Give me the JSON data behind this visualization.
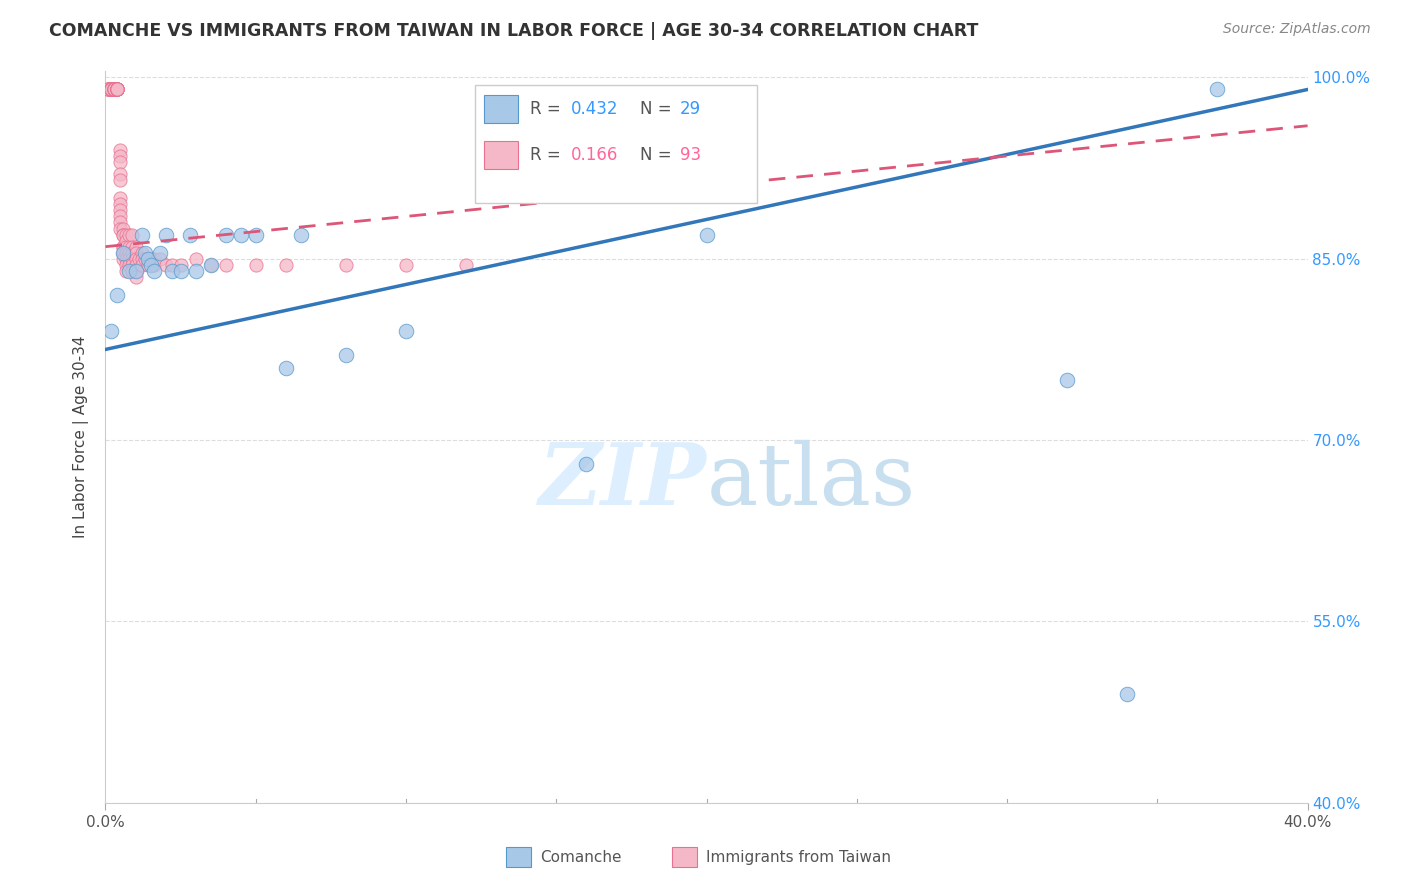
{
  "title": "COMANCHE VS IMMIGRANTS FROM TAIWAN IN LABOR FORCE | AGE 30-34 CORRELATION CHART",
  "source": "Source: ZipAtlas.com",
  "ylabel": "In Labor Force | Age 30-34",
  "xmin": 0.0,
  "xmax": 0.4,
  "ymin": 0.4,
  "ymax": 1.005,
  "yticks": [
    0.4,
    0.55,
    0.7,
    0.85,
    1.0
  ],
  "ytick_labels": [
    "40.0%",
    "55.0%",
    "70.0%",
    "85.0%",
    "100.0%"
  ],
  "legend_blue_r": "0.432",
  "legend_blue_n": "29",
  "legend_pink_r": "0.166",
  "legend_pink_n": "93",
  "blue_color": "#a8c8e8",
  "pink_color": "#f4b8c8",
  "blue_edge_color": "#5599cc",
  "pink_edge_color": "#e87090",
  "blue_line_color": "#3377bb",
  "pink_line_color": "#dd5577",
  "r_value_blue_color": "#3399ff",
  "r_value_pink_color": "#ff6699",
  "watermark_color": "#ddeeff",
  "background_color": "#ffffff",
  "grid_color": "#dddddd",
  "blue_scatter_x": [
    0.002,
    0.004,
    0.006,
    0.008,
    0.01,
    0.012,
    0.013,
    0.014,
    0.015,
    0.016,
    0.018,
    0.02,
    0.022,
    0.025,
    0.028,
    0.03,
    0.035,
    0.04,
    0.045,
    0.05,
    0.06,
    0.065,
    0.08,
    0.1,
    0.16,
    0.2,
    0.32,
    0.34,
    0.37
  ],
  "blue_scatter_y": [
    0.79,
    0.82,
    0.855,
    0.84,
    0.84,
    0.87,
    0.855,
    0.85,
    0.845,
    0.84,
    0.855,
    0.87,
    0.84,
    0.84,
    0.87,
    0.84,
    0.845,
    0.87,
    0.87,
    0.87,
    0.76,
    0.87,
    0.77,
    0.79,
    0.68,
    0.87,
    0.75,
    0.49,
    0.99
  ],
  "pink_scatter_x": [
    0.001,
    0.001,
    0.001,
    0.001,
    0.002,
    0.002,
    0.002,
    0.002,
    0.002,
    0.002,
    0.002,
    0.002,
    0.003,
    0.003,
    0.003,
    0.003,
    0.003,
    0.003,
    0.003,
    0.004,
    0.004,
    0.004,
    0.004,
    0.004,
    0.004,
    0.004,
    0.004,
    0.004,
    0.005,
    0.005,
    0.005,
    0.005,
    0.005,
    0.005,
    0.005,
    0.005,
    0.005,
    0.005,
    0.005,
    0.006,
    0.006,
    0.006,
    0.006,
    0.006,
    0.006,
    0.006,
    0.006,
    0.007,
    0.007,
    0.007,
    0.007,
    0.007,
    0.007,
    0.007,
    0.008,
    0.008,
    0.008,
    0.008,
    0.008,
    0.009,
    0.009,
    0.009,
    0.009,
    0.009,
    0.009,
    0.009,
    0.01,
    0.01,
    0.01,
    0.01,
    0.01,
    0.01,
    0.011,
    0.012,
    0.012,
    0.012,
    0.013,
    0.014,
    0.015,
    0.016,
    0.016,
    0.018,
    0.02,
    0.022,
    0.025,
    0.03,
    0.035,
    0.04,
    0.05,
    0.06,
    0.08,
    0.1,
    0.12
  ],
  "pink_scatter_y": [
    0.99,
    0.99,
    0.99,
    0.99,
    0.99,
    0.99,
    0.99,
    0.99,
    0.99,
    0.99,
    0.99,
    0.99,
    0.99,
    0.99,
    0.99,
    0.99,
    0.99,
    0.99,
    0.99,
    0.99,
    0.99,
    0.99,
    0.99,
    0.99,
    0.99,
    0.99,
    0.99,
    0.99,
    0.94,
    0.935,
    0.93,
    0.92,
    0.915,
    0.9,
    0.895,
    0.89,
    0.885,
    0.88,
    0.875,
    0.875,
    0.87,
    0.87,
    0.86,
    0.86,
    0.855,
    0.855,
    0.85,
    0.87,
    0.865,
    0.86,
    0.855,
    0.85,
    0.845,
    0.84,
    0.87,
    0.86,
    0.855,
    0.85,
    0.845,
    0.87,
    0.86,
    0.855,
    0.85,
    0.845,
    0.84,
    0.84,
    0.86,
    0.855,
    0.85,
    0.845,
    0.84,
    0.835,
    0.85,
    0.855,
    0.85,
    0.845,
    0.85,
    0.845,
    0.85,
    0.85,
    0.845,
    0.85,
    0.845,
    0.845,
    0.845,
    0.85,
    0.845,
    0.845,
    0.845,
    0.845,
    0.845,
    0.845,
    0.845
  ],
  "blue_trendline_x": [
    0.0,
    0.4
  ],
  "blue_trendline_y": [
    0.775,
    0.99
  ],
  "pink_trendline_x": [
    0.0,
    0.4
  ],
  "pink_trendline_y": [
    0.86,
    0.96
  ]
}
